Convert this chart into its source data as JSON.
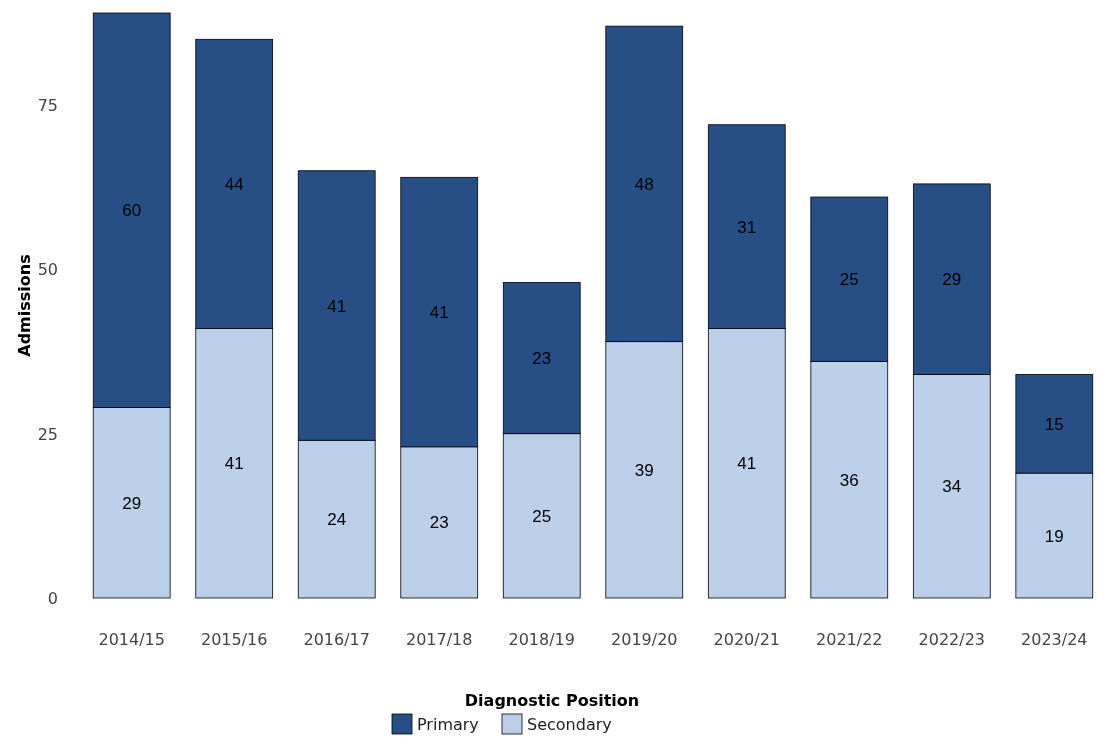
{
  "chart_data": {
    "type": "bar",
    "stacked": true,
    "ylabel": "Admissions",
    "legend_title": "Diagnostic Position",
    "legend": "bottom",
    "data_labels": true,
    "categories": [
      "2014/15",
      "2015/16",
      "2016/17",
      "2017/18",
      "2018/19",
      "2019/20",
      "2020/21",
      "2021/22",
      "2022/23",
      "2023/24"
    ],
    "series": [
      {
        "name": "Secondary",
        "color": "#bcd0ea",
        "values": [
          29,
          41,
          24,
          23,
          25,
          39,
          41,
          36,
          34,
          19
        ]
      },
      {
        "name": "Primary",
        "color": "#274f85",
        "values": [
          60,
          44,
          41,
          41,
          23,
          48,
          31,
          25,
          29,
          15
        ]
      }
    ],
    "ylim": [
      0,
      89
    ],
    "yticks": [
      0,
      25,
      50,
      75
    ]
  }
}
